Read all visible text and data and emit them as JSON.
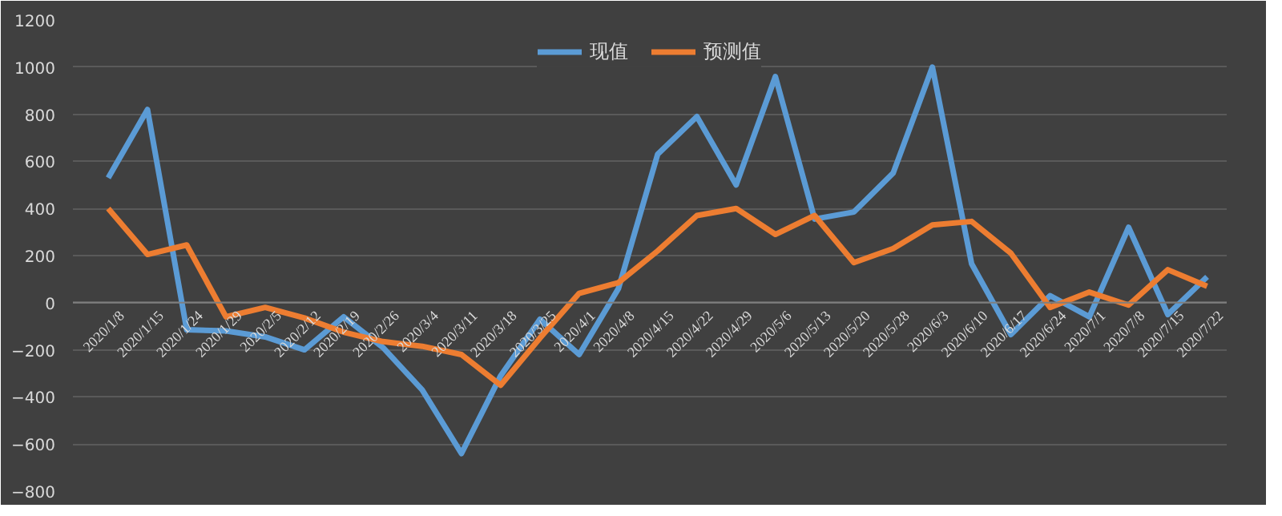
{
  "chart_data": {
    "type": "line",
    "categories": [
      "2020/1/8",
      "2020/1/15",
      "2020/1/24",
      "2020/1/29",
      "2020/2/5",
      "2020/2/12",
      "2020/2/19",
      "2020/2/26",
      "2020/3/4",
      "2020/3/11",
      "2020/3/18",
      "2020/3/25",
      "2020/4/1",
      "2020/4/8",
      "2020/4/15",
      "2020/4/22",
      "2020/4/29",
      "2020/5/6",
      "2020/5/13",
      "2020/5/20",
      "2020/5/28",
      "2020/6/3",
      "2020/6/10",
      "2020/6/17",
      "2020/6/24",
      "2020/7/1",
      "2020/7/8",
      "2020/7/15",
      "2020/7/22"
    ],
    "series": [
      {
        "name": "现值",
        "color": "#5b9bd5",
        "values": [
          530,
          820,
          -115,
          -120,
          -145,
          -200,
          -60,
          -190,
          -370,
          -640,
          -310,
          -70,
          -220,
          60,
          630,
          790,
          500,
          960,
          355,
          385,
          550,
          1000,
          165,
          -135,
          30,
          -60,
          320,
          -50,
          110
        ]
      },
      {
        "name": "预测值",
        "color": "#ed7d31",
        "values": [
          400,
          205,
          245,
          -60,
          -20,
          -65,
          -125,
          -165,
          -185,
          -220,
          -350,
          -150,
          40,
          85,
          220,
          370,
          400,
          290,
          370,
          170,
          230,
          330,
          345,
          210,
          -20,
          45,
          -10,
          140,
          70
        ]
      }
    ],
    "ylim": [
      -800,
      1200
    ],
    "yticks": [
      -800,
      -600,
      -400,
      -200,
      0,
      200,
      400,
      600,
      800,
      1000,
      1200
    ],
    "grid": "y",
    "legend": "top",
    "marker": "none",
    "line_style": "solid"
  }
}
